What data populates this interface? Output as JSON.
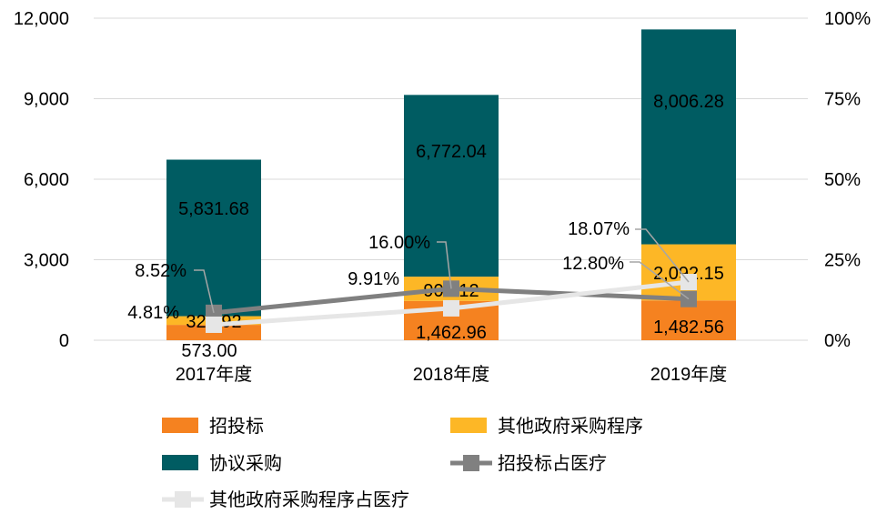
{
  "chart_data": {
    "type": "bar",
    "stacked": true,
    "categories": [
      "2017年度",
      "2018年度",
      "2019年度"
    ],
    "series": [
      {
        "name": "招投标",
        "kind": "bar",
        "color": "#F58220",
        "values": [
          573.0,
          1462.96,
          1482.56
        ],
        "labels": [
          "573.00",
          "1,462.96",
          "1,482.56"
        ]
      },
      {
        "name": "其他政府采购程序",
        "kind": "bar",
        "color": "#FDB726",
        "values": [
          323.92,
          906.12,
          2092.15
        ],
        "labels": [
          "323.92",
          "906.12",
          "2,092.15"
        ]
      },
      {
        "name": "协议采购",
        "kind": "bar",
        "color": "#005C62",
        "values": [
          5831.68,
          6772.04,
          8006.28
        ],
        "labels": [
          "5,831.68",
          "6,772.04",
          "8,006.28"
        ]
      },
      {
        "name": "招投标占医疗",
        "kind": "line",
        "axis": "right",
        "color": "#808080",
        "values": [
          8.52,
          16.0,
          12.8
        ],
        "labels": [
          "8.52%",
          "16.00%",
          "12.80%"
        ]
      },
      {
        "name": "其他政府采购程序占医疗",
        "kind": "line",
        "axis": "right",
        "color": "#E6E6E6",
        "values": [
          4.81,
          9.91,
          18.07
        ],
        "labels": [
          "4.81%",
          "9.91%",
          "18.07%"
        ]
      }
    ],
    "y_left": {
      "min": 0,
      "max": 12000,
      "ticks": [
        0,
        3000,
        6000,
        9000,
        12000
      ],
      "tick_labels": [
        "0",
        "3,000",
        "6,000",
        "9,000",
        "12,000"
      ]
    },
    "y_right": {
      "min": 0,
      "max": 100,
      "ticks": [
        0,
        25,
        50,
        75,
        100
      ],
      "tick_labels": [
        "0%",
        "25%",
        "50%",
        "75%",
        "100%"
      ]
    },
    "grid": true,
    "legend_position": "bottom",
    "title": "",
    "xlabel": "",
    "ylabel": ""
  }
}
